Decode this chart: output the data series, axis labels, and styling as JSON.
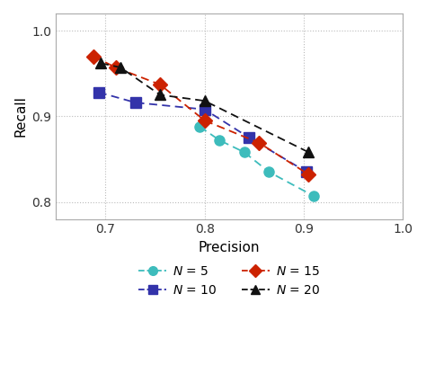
{
  "series": {
    "N5": {
      "precision": [
        0.795,
        0.815,
        0.84,
        0.865,
        0.91
      ],
      "recall": [
        0.888,
        0.872,
        0.858,
        0.835,
        0.807
      ],
      "color": "#3dbcbc",
      "marker": "o",
      "linestyle": "--",
      "label": "N = 5"
    },
    "N10": {
      "precision": [
        0.693,
        0.73,
        0.8,
        0.845,
        0.903
      ],
      "recall": [
        0.928,
        0.916,
        0.908,
        0.875,
        0.835
      ],
      "color": "#3333aa",
      "marker": "s",
      "linestyle": "--",
      "label": "N = 10"
    },
    "N15": {
      "precision": [
        0.688,
        0.71,
        0.755,
        0.8,
        0.855,
        0.905
      ],
      "recall": [
        0.97,
        0.957,
        0.937,
        0.895,
        0.869,
        0.832
      ],
      "color": "#cc2200",
      "marker": "D",
      "linestyle": "--",
      "label": "N = 15"
    },
    "N20": {
      "precision": [
        0.695,
        0.715,
        0.755,
        0.8,
        0.905
      ],
      "recall": [
        0.962,
        0.957,
        0.925,
        0.918,
        0.858
      ],
      "color": "#111111",
      "marker": "^",
      "linestyle": "--",
      "label": "N = 20"
    }
  },
  "xlim": [
    0.65,
    1.0
  ],
  "ylim": [
    0.78,
    1.02
  ],
  "xticks": [
    0.7,
    0.8,
    0.9,
    1.0
  ],
  "yticks": [
    0.8,
    0.9,
    1.0
  ],
  "xlabel": "Precision",
  "ylabel": "Recall",
  "grid_color": "#bbbbbb",
  "bg_color": "#ffffff",
  "markersize": 8
}
